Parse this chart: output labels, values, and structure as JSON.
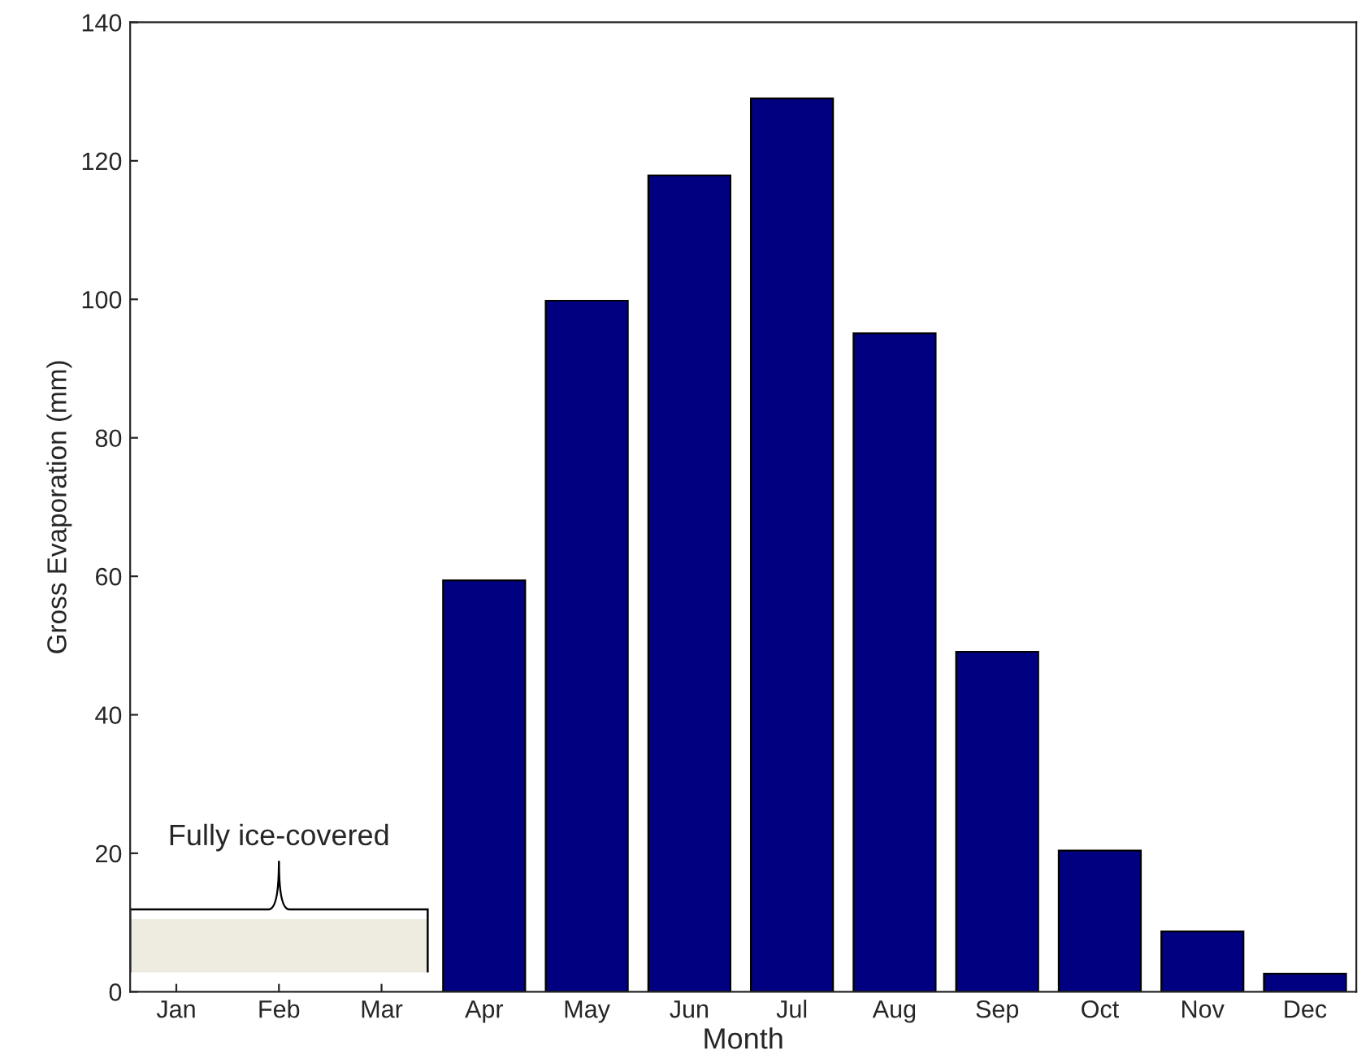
{
  "chart_data": {
    "type": "bar",
    "categories": [
      "Jan",
      "Feb",
      "Mar",
      "Apr",
      "May",
      "Jun",
      "Jul",
      "Aug",
      "Sep",
      "Oct",
      "Nov",
      "Dec"
    ],
    "values": [
      null,
      null,
      null,
      59.4,
      99.8,
      117.9,
      129,
      95.1,
      49.1,
      20.4,
      8.7,
      2.6
    ],
    "color": "#000080",
    "xlabel": "Month",
    "ylabel": "Gross Evaporation (mm)",
    "ylim": [
      0,
      140
    ],
    "yticks": [
      0,
      20,
      40,
      60,
      80,
      100,
      120,
      140
    ],
    "annotations": [
      "Fully ice-covered"
    ],
    "grid": false
  }
}
